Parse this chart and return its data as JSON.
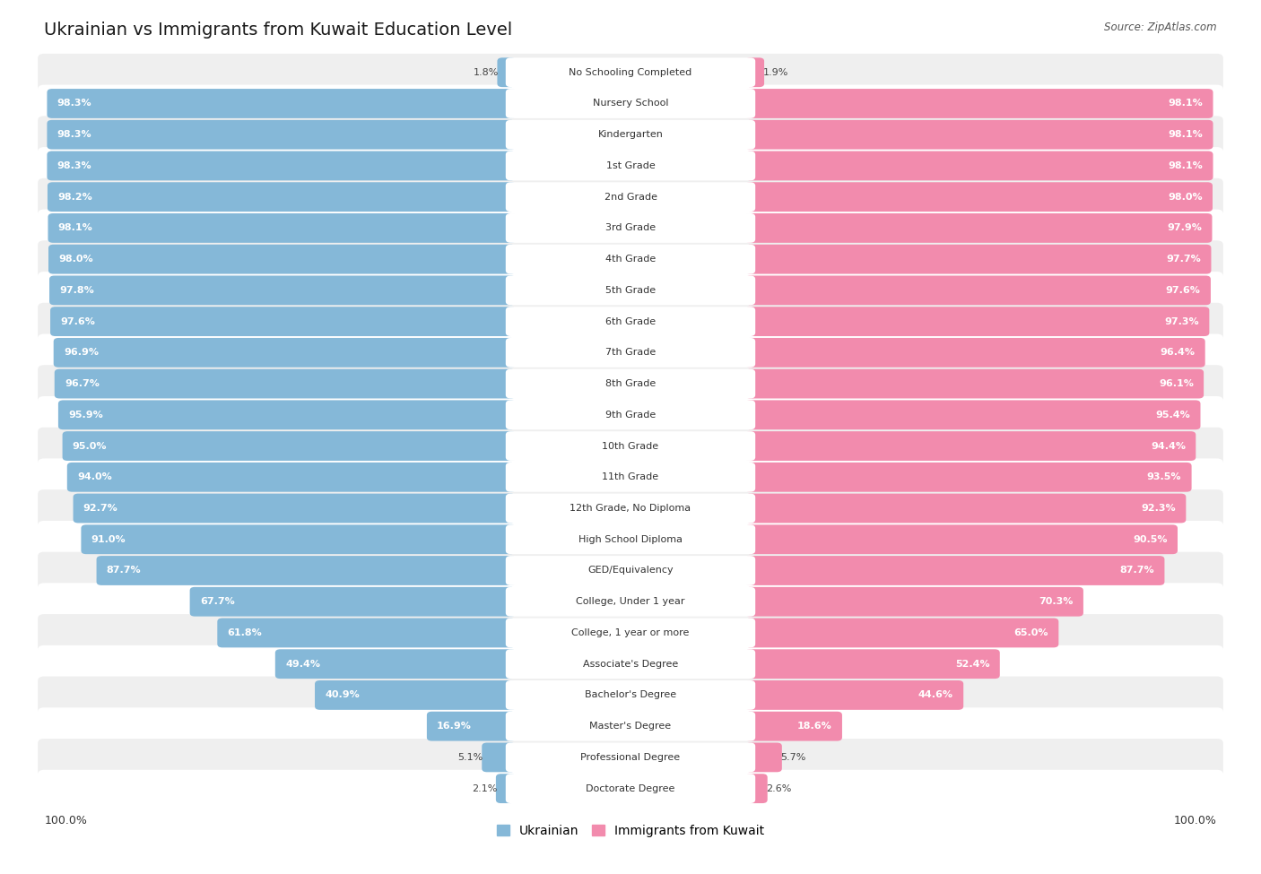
{
  "title": "Ukrainian vs Immigrants from Kuwait Education Level",
  "source": "Source: ZipAtlas.com",
  "categories": [
    "No Schooling Completed",
    "Nursery School",
    "Kindergarten",
    "1st Grade",
    "2nd Grade",
    "3rd Grade",
    "4th Grade",
    "5th Grade",
    "6th Grade",
    "7th Grade",
    "8th Grade",
    "9th Grade",
    "10th Grade",
    "11th Grade",
    "12th Grade, No Diploma",
    "High School Diploma",
    "GED/Equivalency",
    "College, Under 1 year",
    "College, 1 year or more",
    "Associate's Degree",
    "Bachelor's Degree",
    "Master's Degree",
    "Professional Degree",
    "Doctorate Degree"
  ],
  "ukrainian": [
    1.8,
    98.3,
    98.3,
    98.3,
    98.2,
    98.1,
    98.0,
    97.8,
    97.6,
    96.9,
    96.7,
    95.9,
    95.0,
    94.0,
    92.7,
    91.0,
    87.7,
    67.7,
    61.8,
    49.4,
    40.9,
    16.9,
    5.1,
    2.1
  ],
  "kuwait": [
    1.9,
    98.1,
    98.1,
    98.1,
    98.0,
    97.9,
    97.7,
    97.6,
    97.3,
    96.4,
    96.1,
    95.4,
    94.4,
    93.5,
    92.3,
    90.5,
    87.7,
    70.3,
    65.0,
    52.4,
    44.6,
    18.6,
    5.7,
    2.6
  ],
  "ukrainian_color": "#85b8d8",
  "kuwait_color": "#f28bad",
  "background_color": "#ffffff",
  "row_bg_even": "#efefef",
  "row_bg_odd": "#ffffff",
  "max_value": 100.0,
  "legend_ukrainian": "Ukrainian",
  "legend_kuwait": "Immigrants from Kuwait",
  "title_fontsize": 14,
  "label_fontsize": 8,
  "value_fontsize": 8
}
